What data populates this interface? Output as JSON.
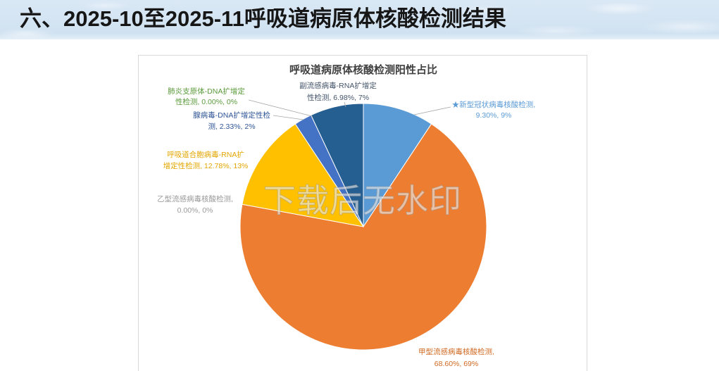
{
  "header": {
    "title": "六、2025-10至2025-11呼吸道病原体核酸检测结果"
  },
  "watermark": "下载后无水印",
  "chart_data": {
    "type": "pie",
    "title": "呼吸道病原体核酸检测阳性占比",
    "legend": "none",
    "slices": [
      {
        "value": 9.3,
        "color": "#5B9BD5",
        "label_color": "#5B9BD5",
        "label": [
          "★新型冠状病毒核酸检测,",
          "9.30%, 9%"
        ]
      },
      {
        "value": 68.6,
        "color": "#ED7D31",
        "label_color": "#D06A23",
        "label": [
          "甲型流感病毒核酸检测,",
          "68.60%, 69%"
        ]
      },
      {
        "value": 0.0,
        "color": "#A5A5A5",
        "label_color": "#9A9A9A",
        "label": [
          "乙型流感病毒核酸检测,",
          "0.00%, 0%"
        ]
      },
      {
        "value": 12.78,
        "color": "#FFC000",
        "label_color": "#E3A600",
        "label": [
          "呼吸道合胞病毒-RNA扩",
          "增定性检测, 12.78%, 13%"
        ]
      },
      {
        "value": 2.33,
        "color": "#4472C4",
        "label_color": "#2F5597",
        "label": [
          "腺病毒-DNA扩增定性检",
          "测, 2.33%, 2%"
        ]
      },
      {
        "value": 0.0,
        "color": "#70AD47",
        "label_color": "#5A9A3A",
        "label": [
          "肺炎支原体-DNA扩增定",
          "性检测, 0.00%, 0%"
        ]
      },
      {
        "value": 6.98,
        "color": "#255E91",
        "label_color": "#44546A",
        "label": [
          "副流感病毒-RNA扩增定",
          "性检测, 6.98%, 7%"
        ]
      }
    ]
  }
}
